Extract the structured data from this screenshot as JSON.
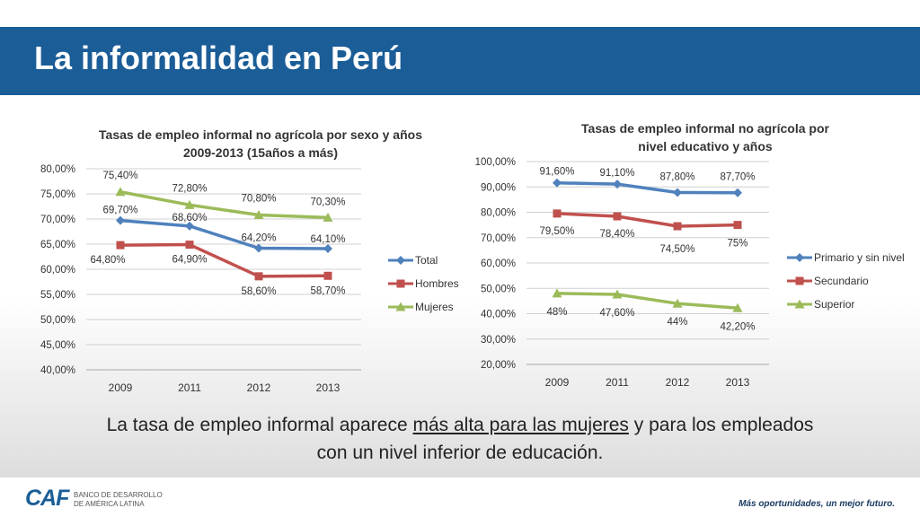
{
  "slide": {
    "title": "La informalidad en Perú",
    "caption_pre": "La tasa de empleo informal aparece ",
    "caption_underlined": "más alta para las mujeres",
    "caption_post": " y para los empleados con un nivel inferior de educación.",
    "logo_text": "CAF",
    "logo_subtitle": "BANCO DE DESARROLLO DE AMÉRICA LATINA",
    "slogan": "Más oportunidades, un mejor futuro."
  },
  "chart_data": [
    {
      "type": "line",
      "title_line1": "Tasas de empleo informal no agrícola por sexo y años",
      "title_line2": "2009-2013 (15años a más)",
      "categories": [
        "2009",
        "2011",
        "2012",
        "2013"
      ],
      "ylim": [
        40,
        80
      ],
      "yticks": [
        "40,00%",
        "45,00%",
        "50,00%",
        "55,00%",
        "60,00%",
        "65,00%",
        "70,00%",
        "75,00%",
        "80,00%"
      ],
      "grid": true,
      "legend_position": "right",
      "series": [
        {
          "name": "Total",
          "color": "#4f81bd",
          "marker": "diamond",
          "values": [
            69.7,
            68.6,
            64.2,
            64.1
          ],
          "labels": [
            "69,70%",
            "68,60%",
            "64,20%",
            "64,10%"
          ]
        },
        {
          "name": "Hombres",
          "color": "#c0504d",
          "marker": "square",
          "values": [
            64.8,
            64.9,
            58.6,
            58.7
          ],
          "labels": [
            "64,80%",
            "64,90%",
            "58,60%",
            "58,70%"
          ]
        },
        {
          "name": "Mujeres",
          "color": "#9bbb59",
          "marker": "triangle",
          "values": [
            75.4,
            72.8,
            70.8,
            70.3
          ],
          "labels": [
            "75,40%",
            "72,80%",
            "70,80%",
            "70,30%"
          ]
        }
      ]
    },
    {
      "type": "line",
      "title_line1": "Tasas de empleo informal no agrícola por",
      "title_line2": "nivel educativo y años",
      "categories": [
        "2009",
        "2011",
        "2012",
        "2013"
      ],
      "ylim": [
        20,
        100
      ],
      "yticks": [
        "20,00%",
        "30,00%",
        "40,00%",
        "50,00%",
        "60,00%",
        "70,00%",
        "80,00%",
        "90,00%",
        "100,00%"
      ],
      "grid": true,
      "legend_position": "right",
      "series": [
        {
          "name": "Primario y sin nivel",
          "color": "#4f81bd",
          "marker": "diamond",
          "values": [
            91.6,
            91.1,
            87.8,
            87.7
          ],
          "labels": [
            "91,60%",
            "91,10%",
            "87,80%",
            "87,70%"
          ]
        },
        {
          "name": "Secundario",
          "color": "#c0504d",
          "marker": "square",
          "values": [
            79.5,
            78.4,
            74.5,
            75
          ],
          "labels": [
            "79,50%",
            "78,40%",
            "74,50%",
            "75%"
          ]
        },
        {
          "name": "Superior",
          "color": "#9bbb59",
          "marker": "triangle",
          "values": [
            48,
            47.6,
            44,
            42.2
          ],
          "labels": [
            "48%",
            "47,60%",
            "44%",
            "42,20%"
          ]
        }
      ]
    }
  ]
}
